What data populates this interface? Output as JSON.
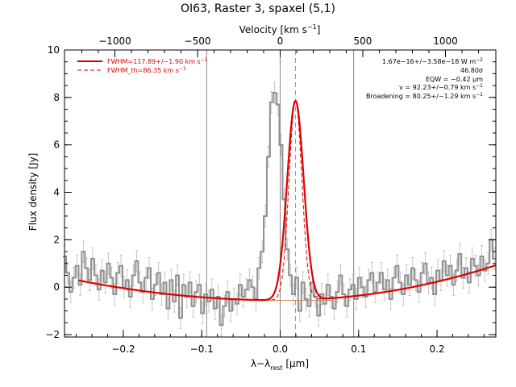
{
  "chart_data": {
    "type": "line",
    "title": "OI63, Raster 3, spaxel (5,1)",
    "xlabel_main": "λ−λ",
    "xlabel_sub": "rest",
    "xlabel_unit": " [μm]",
    "ylabel": "Flux density [Jy]",
    "top_axis_label_main": "Velocity [km s",
    "top_axis_label_sup": "−1",
    "top_axis_label_end": "]",
    "xlim": [
      -0.275,
      0.275
    ],
    "ylim": [
      -2.1,
      10
    ],
    "top_axis": {
      "rest_wavelength_um": 63.18,
      "ticks": [
        -1000,
        -500,
        0,
        500,
        1000
      ],
      "tick_labels": [
        "−1000",
        "−500",
        "0",
        "500",
        "1000"
      ]
    },
    "x_ticks": [
      -0.2,
      -0.1,
      0.0,
      0.1,
      0.2
    ],
    "x_tick_labels": [
      "−0.2",
      "−0.1",
      "0.0",
      "0.1",
      "0.2"
    ],
    "y_ticks": [
      -2,
      0,
      2,
      4,
      6,
      8,
      10
    ],
    "y_tick_labels": [
      "−2",
      "0",
      "2",
      "4",
      "6",
      "8",
      "10"
    ],
    "vertical_lines_x": [
      -0.0937,
      0.0,
      0.0937
    ],
    "line_center_x": 0.0195,
    "legend": {
      "entry1": "FWHM=117.89+/−1.90 km s",
      "entry1_sup": "−1",
      "entry2": "FWHM_th=86.35 km s",
      "entry2_sup": "−1"
    },
    "annotations": {
      "flux_main": "1.67e−16+/−3.58e−18 W m",
      "flux_sup": "−2",
      "sigma": "46.80σ",
      "eqw": "EQW = −0.42 μm",
      "velocity_main": "v = 92.23+/−0.79 km s",
      "velocity_sup": "−1",
      "broadening_main": "Broadening = 80.25+/−1.29 km s",
      "broadening_sup": "−1"
    },
    "colors": {
      "data": "#909090",
      "fit": "#e00000",
      "component": "#c86414",
      "axis": "#000000",
      "guide": "#999999"
    },
    "series": [
      {
        "x": [
          -0.275,
          -0.271,
          -0.267,
          -0.263,
          -0.259,
          -0.255,
          -0.251,
          -0.247,
          -0.243,
          -0.239,
          -0.235,
          -0.231,
          -0.227,
          -0.223,
          -0.219,
          -0.215,
          -0.211,
          -0.207,
          -0.203,
          -0.199,
          -0.195,
          -0.191,
          -0.187,
          -0.183,
          -0.179,
          -0.175,
          -0.171,
          -0.167,
          -0.163,
          -0.159,
          -0.155,
          -0.151,
          -0.147,
          -0.143,
          -0.139,
          -0.135,
          -0.131,
          -0.127,
          -0.123,
          -0.119,
          -0.115,
          -0.111,
          -0.107,
          -0.103,
          -0.099,
          -0.095,
          -0.091,
          -0.087,
          -0.083,
          -0.079,
          -0.075,
          -0.071,
          -0.067,
          -0.063,
          -0.059,
          -0.055,
          -0.051,
          -0.047,
          -0.043,
          -0.039,
          -0.035,
          -0.031,
          -0.027,
          -0.023,
          -0.019,
          -0.015,
          -0.011,
          -0.007,
          -0.003,
          0.001,
          0.005,
          0.009,
          0.013,
          0.017,
          0.021,
          0.025,
          0.029,
          0.033,
          0.037,
          0.041,
          0.045,
          0.049,
          0.053,
          0.057,
          0.061,
          0.065,
          0.069,
          0.073,
          0.077,
          0.081,
          0.085,
          0.089,
          0.093,
          0.097,
          0.101,
          0.105,
          0.109,
          0.113,
          0.117,
          0.121,
          0.125,
          0.129,
          0.133,
          0.137,
          0.141,
          0.145,
          0.149,
          0.153,
          0.157,
          0.161,
          0.165,
          0.169,
          0.173,
          0.177,
          0.181,
          0.185,
          0.189,
          0.193,
          0.197,
          0.201,
          0.205,
          0.209,
          0.213,
          0.217,
          0.221,
          0.225,
          0.229,
          0.233,
          0.237,
          0.241,
          0.245,
          0.249,
          0.253,
          0.257,
          0.261,
          0.265,
          0.269,
          0.273
        ],
        "y": [
          1.3,
          0.6,
          -0.2,
          0.4,
          0.9,
          0.1,
          1.5,
          0.8,
          0.3,
          1.2,
          0.5,
          -0.1,
          0.7,
          0.2,
          1.0,
          0.4,
          -0.3,
          0.6,
          0.9,
          0.0,
          0.3,
          -0.4,
          0.5,
          1.1,
          0.2,
          -0.2,
          0.4,
          0.8,
          -0.5,
          0.1,
          0.6,
          -0.3,
          0.2,
          -0.9,
          0.3,
          -0.6,
          0.5,
          -1.3,
          0.1,
          -0.4,
          0.2,
          -0.8,
          -0.2,
          0.1,
          -1.1,
          -0.3,
          -0.6,
          -0.1,
          -0.9,
          -0.4,
          -1.6,
          -0.8,
          -0.2,
          -1.0,
          -0.5,
          -0.7,
          0.1,
          -0.4,
          -0.1,
          0.3,
          0.0,
          -0.5,
          0.8,
          1.5,
          3.0,
          5.5,
          7.8,
          8.2,
          7.7,
          6.0,
          3.7,
          1.6,
          0.5,
          -0.3,
          0.4,
          -1.0,
          0.2,
          -0.5,
          -0.8,
          0.2,
          -0.4,
          -1.2,
          -0.3,
          -0.7,
          0.1,
          -0.4,
          -0.9,
          -0.2,
          0.5,
          -0.3,
          -0.8,
          -0.1,
          0.1,
          -0.5,
          0.4,
          0.0,
          -0.4,
          0.3,
          0.6,
          -0.2,
          0.2,
          0.6,
          -0.1,
          0.3,
          -0.5,
          0.4,
          0.9,
          0.2,
          -0.3,
          0.5,
          0.1,
          0.8,
          0.3,
          -0.2,
          0.6,
          1.0,
          0.2,
          0.4,
          -0.3,
          0.7,
          0.3,
          1.1,
          0.5,
          0.9,
          0.1,
          0.7,
          1.4,
          0.4,
          0.8,
          0.2,
          1.2,
          0.9,
          0.5,
          1.3,
          0.7,
          1.0,
          2.0,
          1.2
        ],
        "error": 0.45
      },
      {
        "fit_continuum": {
          "a": -0.55,
          "b": 0.35,
          "c": 19.5
        },
        "fit_gaussian": {
          "amplitude": 8.4,
          "center": 0.0195,
          "sigma": 0.0105
        },
        "x_range": [
          -0.257,
          0.275
        ]
      }
    ]
  }
}
